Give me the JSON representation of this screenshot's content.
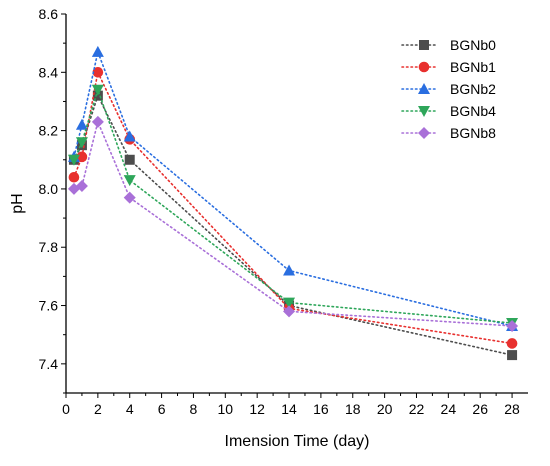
{
  "chart_data": {
    "type": "line",
    "title": "",
    "xlabel": "Imension Time (day)",
    "ylabel": "pH",
    "xlim": [
      0,
      29
    ],
    "ylim": [
      7.3,
      8.6
    ],
    "xticks": [
      0,
      2,
      4,
      6,
      8,
      10,
      12,
      14,
      16,
      18,
      20,
      22,
      24,
      26,
      28
    ],
    "yticks": [
      7.4,
      7.6,
      7.8,
      8.0,
      8.2,
      8.4,
      8.6
    ],
    "x": [
      0.5,
      1,
      2,
      4,
      14,
      28
    ],
    "grid": false,
    "legend_position": "top-right",
    "series": [
      {
        "name": "BGNb0",
        "marker": "square",
        "color": "#4d4d4d",
        "values": [
          8.1,
          8.15,
          8.32,
          8.1,
          7.6,
          7.43
        ]
      },
      {
        "name": "BGNb1",
        "marker": "circle",
        "color": "#e8302e",
        "values": [
          8.04,
          8.11,
          8.4,
          8.17,
          7.59,
          7.47
        ]
      },
      {
        "name": "BGNb2",
        "marker": "triangle-up",
        "color": "#2a6ee0",
        "values": [
          8.11,
          8.22,
          8.47,
          8.18,
          7.72,
          7.53
        ]
      },
      {
        "name": "BGNb4",
        "marker": "triangle-down",
        "color": "#2ea65a",
        "values": [
          8.1,
          8.16,
          8.34,
          8.03,
          7.61,
          7.54
        ]
      },
      {
        "name": "BGNb8",
        "marker": "diamond",
        "color": "#a970d8",
        "values": [
          8.0,
          8.01,
          8.23,
          7.97,
          7.58,
          7.53
        ]
      }
    ]
  }
}
